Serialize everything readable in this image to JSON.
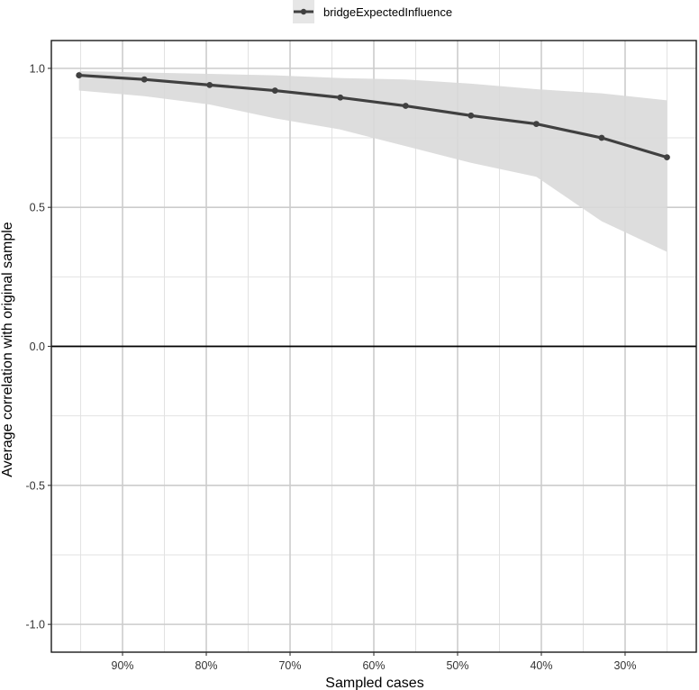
{
  "chart_data": {
    "type": "line",
    "xlabel": "Sampled cases",
    "ylabel": "Average correlation with original sample",
    "x_ticks": [
      {
        "value": 90,
        "label": "90%"
      },
      {
        "value": 80,
        "label": "80%"
      },
      {
        "value": 70,
        "label": "70%"
      },
      {
        "value": 60,
        "label": "60%"
      },
      {
        "value": 50,
        "label": "50%"
      },
      {
        "value": 40,
        "label": "40%"
      },
      {
        "value": 30,
        "label": "30%"
      }
    ],
    "y_ticks": [
      {
        "value": 1.0,
        "label": "1.0"
      },
      {
        "value": 0.5,
        "label": "0.5"
      },
      {
        "value": 0.0,
        "label": "0.0"
      },
      {
        "value": -0.5,
        "label": "-0.5"
      },
      {
        "value": -1.0,
        "label": "-1.0"
      }
    ],
    "xlim": [
      98.5,
      21.5
    ],
    "ylim": [
      -1.1,
      1.1
    ],
    "x_reversed": true,
    "grid": true,
    "reference_line_y": 0,
    "legend_position": "top",
    "series": [
      {
        "name": "bridgeExpectedInfluence",
        "color": "#404040",
        "x": [
          95.2,
          87.4,
          79.6,
          71.8,
          64.0,
          56.2,
          48.4,
          40.6,
          32.8,
          25.0
        ],
        "y": [
          0.975,
          0.96,
          0.94,
          0.92,
          0.895,
          0.865,
          0.83,
          0.8,
          0.75,
          0.68
        ],
        "lower": [
          0.92,
          0.9,
          0.87,
          0.82,
          0.78,
          0.72,
          0.66,
          0.61,
          0.45,
          0.34
        ],
        "upper": [
          0.99,
          0.985,
          0.98,
          0.975,
          0.965,
          0.96,
          0.945,
          0.925,
          0.91,
          0.885
        ]
      }
    ],
    "ribbon_color": "#d9d9d9"
  }
}
